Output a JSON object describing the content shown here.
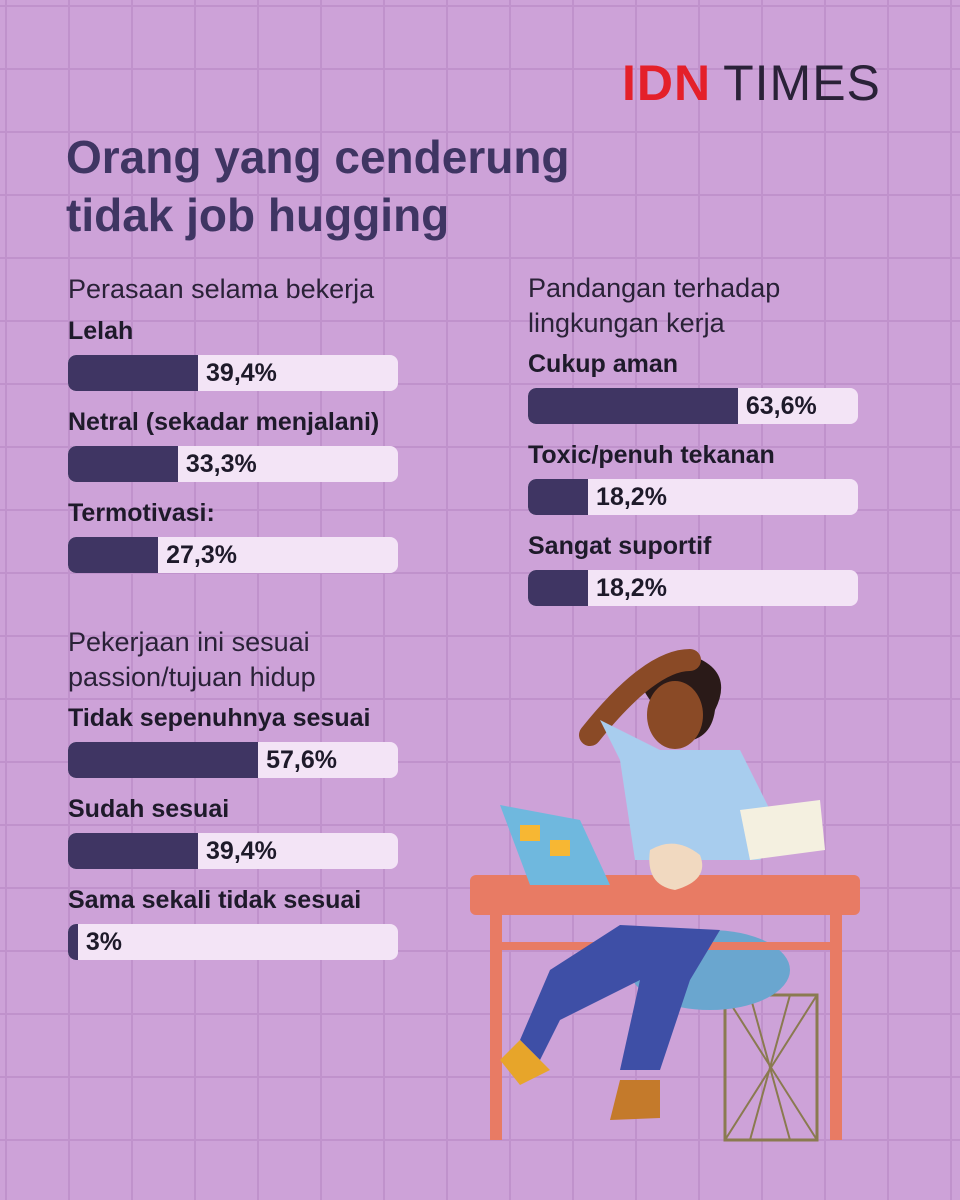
{
  "brand": {
    "red": "IDN",
    "dark": "TIMES"
  },
  "title": "Orang yang cenderung tidak job hugging",
  "chart_data": [
    {
      "type": "bar",
      "orientation": "horizontal",
      "title": "Perasaan selama bekerja",
      "categories": [
        "Lelah",
        "Netral (sekadar menjalani)",
        "Termotivasi:"
      ],
      "values": [
        39.4,
        33.3,
        27.3
      ],
      "value_labels": [
        "39,4%",
        "33,3%",
        "27,3%"
      ],
      "xlim": [
        0,
        100
      ],
      "color": "#3f3563",
      "track_color": "#f3e4f6"
    },
    {
      "type": "bar",
      "orientation": "horizontal",
      "title": "Pandangan terhadap lingkungan kerja",
      "categories": [
        "Cukup aman",
        "Toxic/penuh tekanan",
        "Sangat suportif"
      ],
      "values": [
        63.6,
        18.2,
        18.2
      ],
      "value_labels": [
        "63,6%",
        "18,2%",
        "18,2%"
      ],
      "xlim": [
        0,
        100
      ],
      "color": "#3f3563",
      "track_color": "#f3e4f6"
    },
    {
      "type": "bar",
      "orientation": "horizontal",
      "title": "Pekerjaan ini sesuai passion/tujuan hidup",
      "categories": [
        "Tidak sepenuhnya sesuai",
        "Sudah sesuai",
        "Sama sekali tidak sesuai"
      ],
      "values": [
        57.6,
        39.4,
        3
      ],
      "value_labels": [
        "57,6%",
        "39,4%",
        "3%"
      ],
      "xlim": [
        0,
        100
      ],
      "color": "#3f3563",
      "track_color": "#f3e4f6"
    }
  ]
}
